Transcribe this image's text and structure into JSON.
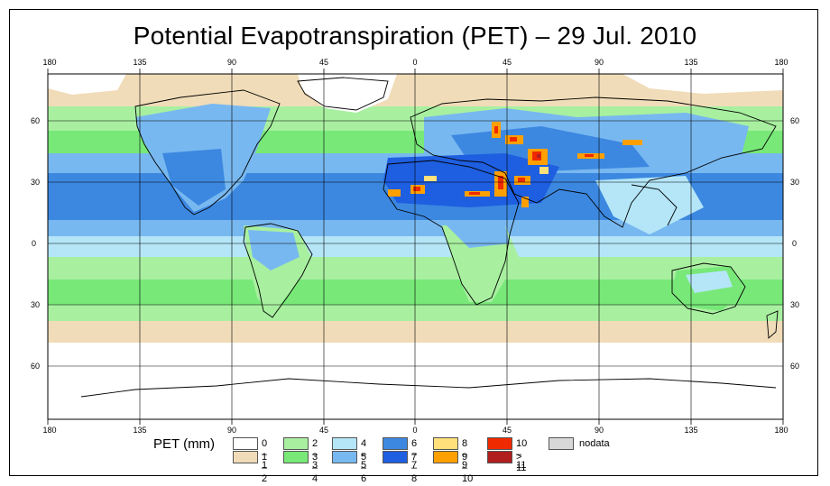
{
  "title": "Potential Evapotranspiration (PET) – 29 Jul. 2010",
  "top_axis_labels": [
    "180",
    "135",
    "90",
    "45",
    "0",
    "45",
    "90",
    "135",
    "180"
  ],
  "bottom_axis_labels": [
    "180",
    "135",
    "90",
    "45",
    "0",
    "45",
    "90",
    "135",
    "180"
  ],
  "left_axis_labels": [
    "60",
    "30",
    "0",
    "30",
    "60"
  ],
  "right_axis_labels": [
    "60",
    "30",
    "0",
    "30",
    "60"
  ],
  "legend": {
    "title": "PET (mm)",
    "items": [
      {
        "label": "0 – 1",
        "color": "#ffffff"
      },
      {
        "label": "1 – 2",
        "color": "#f0dcb8"
      },
      {
        "label": "2 – 3",
        "color": "#a8f0a0"
      },
      {
        "label": "3 – 4",
        "color": "#78e878"
      },
      {
        "label": "4 – 5",
        "color": "#b4e6f8"
      },
      {
        "label": "5 – 6",
        "color": "#78b8f0"
      },
      {
        "label": "6 – 7",
        "color": "#3c88e0"
      },
      {
        "label": "7 – 8",
        "color": "#1e5ee0"
      },
      {
        "label": "8 – 9",
        "color": "#ffe07a"
      },
      {
        "label": "9 – 10",
        "color": "#ffa000"
      },
      {
        "label": "10 – 11",
        "color": "#f02a00"
      },
      {
        "label": "> 11",
        "color": "#b01e1e"
      },
      {
        "label": "nodata",
        "color": "#d8d8d8"
      }
    ]
  }
}
